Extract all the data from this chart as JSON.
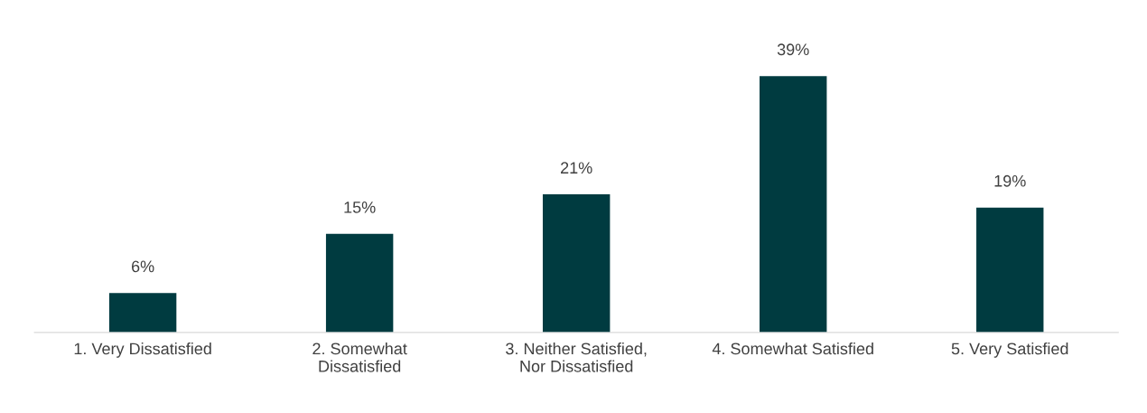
{
  "chart_data": {
    "type": "bar",
    "categories": [
      "1. Very Dissatisfied",
      "2. Somewhat\nDissatisfied",
      "3. Neither Satisfied,\nNor Dissatisfied",
      "4. Somewhat Satisfied",
      "5. Very Satisfied"
    ],
    "values": [
      6,
      15,
      21,
      39,
      19
    ],
    "value_labels": [
      "6%",
      "15%",
      "21%",
      "39%",
      "19%"
    ],
    "color": "#003b40",
    "grid": false,
    "legend": false
  }
}
